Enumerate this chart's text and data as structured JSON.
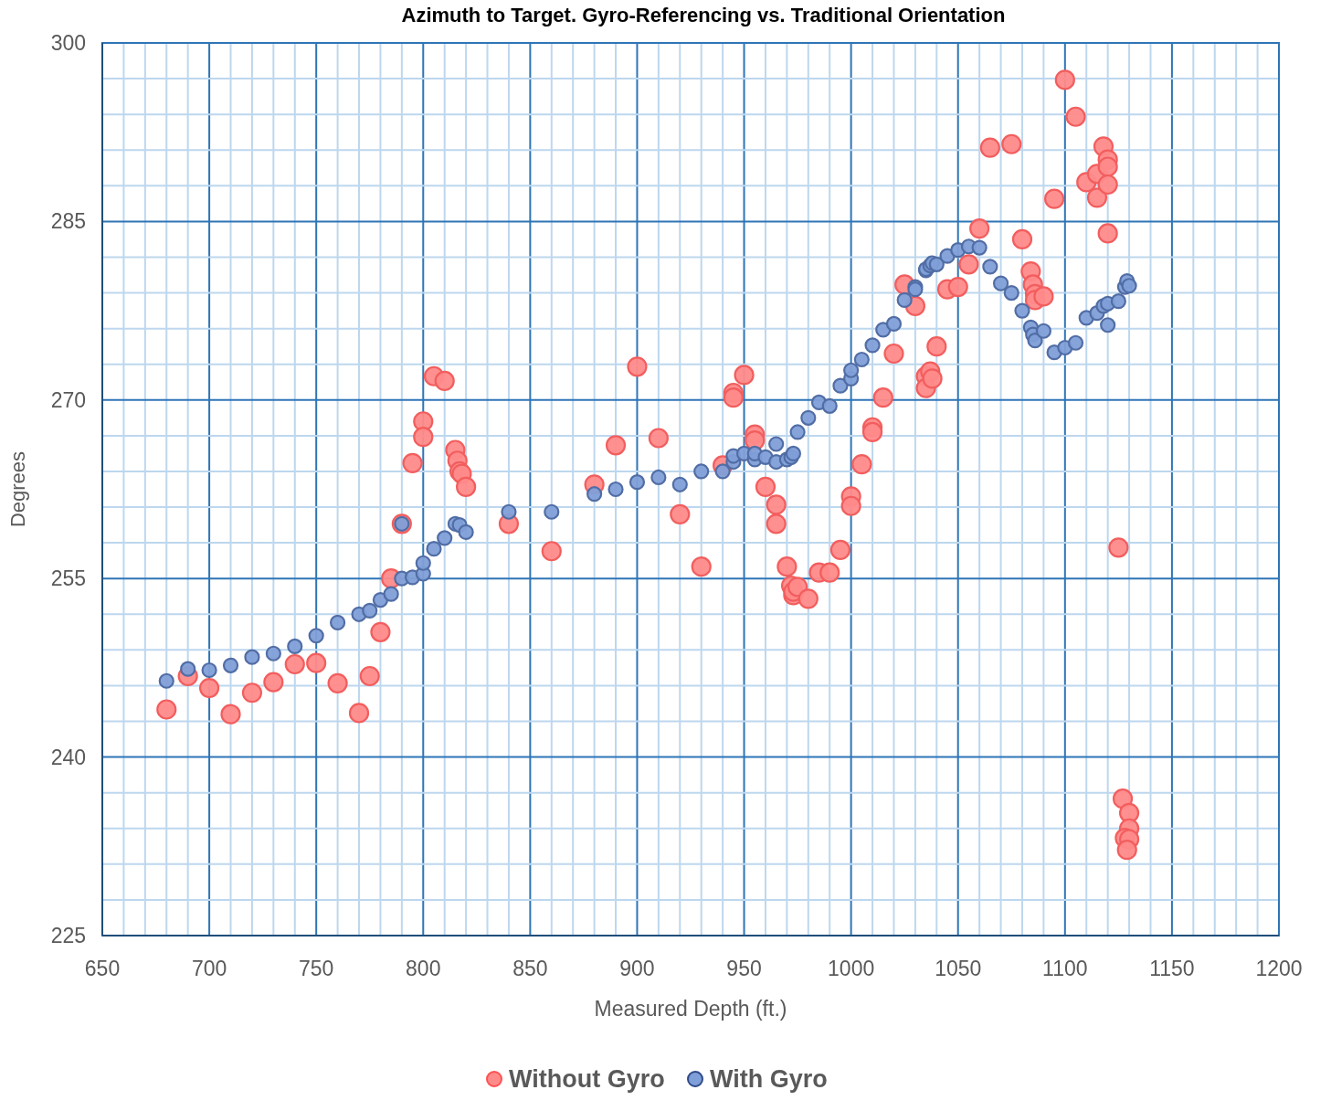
{
  "chart_data": {
    "type": "scatter",
    "title": "Azimuth to Target. Gyro-Referencing vs. Traditional Orientation",
    "xlabel": "Measured Depth (ft.)",
    "ylabel": "Degrees",
    "xlim": [
      650,
      1200
    ],
    "ylim": [
      225,
      300
    ],
    "xticks": [
      650,
      {
        "value": 660,
        "label": null
      },
      {
        "value": 670,
        "label": null
      },
      {
        "value": 680,
        "label": null
      },
      {
        "value": 690,
        "label": null
      },
      700,
      {
        "value": 710,
        "label": null
      },
      {
        "value": 720,
        "label": null
      },
      {
        "value": 730,
        "label": null
      },
      {
        "value": 740,
        "label": null
      },
      750,
      {
        "value": 760,
        "label": null
      },
      {
        "value": 770,
        "label": null
      },
      {
        "value": 780,
        "label": null
      },
      {
        "value": 790,
        "label": null
      },
      800,
      {
        "value": 810,
        "label": null
      },
      {
        "value": 820,
        "label": null
      },
      {
        "value": 830,
        "label": null
      },
      {
        "value": 840,
        "label": null
      },
      850,
      {
        "value": 860,
        "label": null
      },
      {
        "value": 870,
        "label": null
      },
      {
        "value": 880,
        "label": null
      },
      {
        "value": 890,
        "label": null
      },
      900,
      {
        "value": 910,
        "label": null
      },
      {
        "value": 920,
        "label": null
      },
      {
        "value": 930,
        "label": null
      },
      {
        "value": 940,
        "label": null
      },
      950,
      {
        "value": 960,
        "label": null
      },
      {
        "value": 970,
        "label": null
      },
      {
        "value": 980,
        "label": null
      },
      {
        "value": 990,
        "label": null
      },
      1000,
      {
        "value": 1010,
        "label": null
      },
      {
        "value": 1020,
        "label": null
      },
      {
        "value": 1030,
        "label": null
      },
      {
        "value": 1040,
        "label": null
      },
      1050,
      {
        "value": 1060,
        "label": null
      },
      {
        "value": 1070,
        "label": null
      },
      {
        "value": 1080,
        "label": null
      },
      {
        "value": 1090,
        "label": null
      },
      1100,
      {
        "value": 1110,
        "label": null
      },
      {
        "value": 1120,
        "label": null
      },
      {
        "value": 1130,
        "label": null
      },
      {
        "value": 1140,
        "label": null
      },
      1150,
      {
        "value": 1160,
        "label": null
      },
      {
        "value": 1170,
        "label": null
      },
      {
        "value": 1180,
        "label": null
      },
      {
        "value": 1190,
        "label": null
      },
      1200
    ],
    "yticks": [
      225,
      {
        "value": 228,
        "label": null
      },
      {
        "value": 231,
        "label": null
      },
      {
        "value": 234,
        "label": null
      },
      {
        "value": 237,
        "label": null
      },
      240,
      {
        "value": 243,
        "label": null
      },
      {
        "value": 246,
        "label": null
      },
      {
        "value": 249,
        "label": null
      },
      {
        "value": 252,
        "label": null
      },
      255,
      {
        "value": 258,
        "label": null
      },
      {
        "value": 261,
        "label": null
      },
      {
        "value": 264,
        "label": null
      },
      {
        "value": 267,
        "label": null
      },
      270,
      {
        "value": 273,
        "label": null
      },
      {
        "value": 276,
        "label": null
      },
      {
        "value": 279,
        "label": null
      },
      {
        "value": 282,
        "label": null
      },
      285,
      {
        "value": 288,
        "label": null
      },
      {
        "value": 291,
        "label": null
      },
      {
        "value": 294,
        "label": null
      },
      {
        "value": 297,
        "label": null
      },
      300
    ],
    "grid": true,
    "legend": "bottom",
    "marker": "circle",
    "series": [
      {
        "name": "Without Gyro",
        "color": "#ff8a8a",
        "x": [
          680,
          690,
          700,
          710,
          720,
          730,
          740,
          750,
          760,
          770,
          775,
          780,
          785,
          790,
          795,
          800,
          800,
          805,
          810,
          815,
          816,
          817,
          818,
          820,
          840,
          860,
          880,
          890,
          900,
          910,
          920,
          930,
          940,
          945,
          945,
          950,
          955,
          955,
          960,
          965,
          965,
          970,
          972,
          973,
          973,
          975,
          980,
          985,
          990,
          995,
          1000,
          1000,
          1005,
          1010,
          1010,
          1015,
          1020,
          1025,
          1030,
          1035,
          1035,
          1037,
          1038,
          1040,
          1045,
          1050,
          1055,
          1060,
          1065,
          1075,
          1080,
          1084,
          1085,
          1086,
          1086,
          1090,
          1095,
          1100,
          1105,
          1110,
          1115,
          1115,
          1118,
          1120,
          1120,
          1120,
          1120,
          1125,
          1127,
          1130,
          1130,
          1128,
          1130,
          1129
        ],
        "values": [
          244.0,
          246.8,
          245.8,
          243.6,
          245.4,
          246.3,
          247.8,
          247.9,
          246.2,
          243.7,
          246.8,
          250.5,
          255.0,
          259.6,
          264.7,
          268.2,
          266.9,
          272.0,
          271.6,
          265.8,
          264.9,
          264.0,
          263.8,
          262.7,
          259.6,
          257.3,
          262.9,
          266.2,
          272.8,
          266.8,
          260.4,
          256.0,
          264.5,
          270.6,
          270.2,
          272.1,
          267.1,
          266.6,
          262.7,
          261.2,
          259.6,
          256.0,
          254.4,
          253.6,
          253.9,
          254.3,
          253.3,
          255.5,
          255.5,
          257.4,
          261.9,
          261.1,
          264.6,
          267.7,
          267.3,
          270.2,
          273.9,
          279.7,
          277.9,
          272.0,
          271.0,
          272.4,
          271.8,
          274.5,
          279.3,
          279.5,
          281.4,
          284.4,
          291.2,
          291.5,
          283.5,
          280.8,
          279.7,
          278.9,
          278.4,
          278.7,
          286.9,
          296.9,
          293.8,
          288.3,
          289.0,
          287.0,
          291.3,
          290.2,
          289.6,
          288.1,
          284.0,
          257.6,
          236.5,
          235.3,
          234.0,
          233.2,
          233.1,
          232.2
        ]
      },
      {
        "name": "With Gyro",
        "color": "#7f9fd8",
        "x": [
          680,
          690,
          700,
          710,
          720,
          730,
          740,
          750,
          760,
          770,
          775,
          780,
          785,
          790,
          795,
          800,
          800,
          805,
          810,
          790,
          815,
          817,
          820,
          840,
          860,
          880,
          890,
          900,
          910,
          920,
          930,
          940,
          945,
          945,
          950,
          955,
          955,
          960,
          965,
          965,
          970,
          972,
          973,
          975,
          980,
          985,
          990,
          995,
          1000,
          1000,
          1005,
          1010,
          1015,
          1020,
          1025,
          1030,
          1030,
          1035,
          1035,
          1037,
          1038,
          1040,
          1045,
          1050,
          1055,
          1060,
          1065,
          1070,
          1075,
          1080,
          1084,
          1085,
          1086,
          1090,
          1095,
          1100,
          1105,
          1110,
          1115,
          1118,
          1120,
          1120,
          1125,
          1128,
          1129,
          1130
        ],
        "values": [
          246.4,
          247.4,
          247.3,
          247.7,
          248.4,
          248.7,
          249.3,
          250.2,
          251.3,
          252.0,
          252.3,
          253.2,
          253.7,
          255.0,
          255.1,
          255.4,
          256.3,
          257.5,
          258.4,
          259.6,
          259.6,
          259.5,
          258.9,
          260.6,
          260.6,
          262.1,
          262.5,
          263.1,
          263.5,
          262.9,
          264.0,
          264.0,
          264.8,
          265.3,
          265.5,
          265.0,
          265.5,
          265.2,
          264.8,
          266.3,
          265.0,
          265.2,
          265.5,
          267.3,
          268.5,
          269.8,
          269.5,
          271.2,
          271.8,
          272.5,
          273.4,
          274.6,
          275.9,
          276.4,
          278.4,
          279.5,
          279.3,
          280.9,
          281.0,
          281.3,
          281.5,
          281.4,
          282.1,
          282.6,
          282.9,
          282.8,
          281.2,
          279.8,
          279.0,
          277.5,
          276.1,
          275.5,
          275.0,
          275.8,
          274.0,
          274.4,
          274.8,
          276.9,
          277.3,
          277.9,
          278.1,
          276.3,
          278.3,
          279.5,
          280.0,
          279.6
        ]
      }
    ]
  }
}
